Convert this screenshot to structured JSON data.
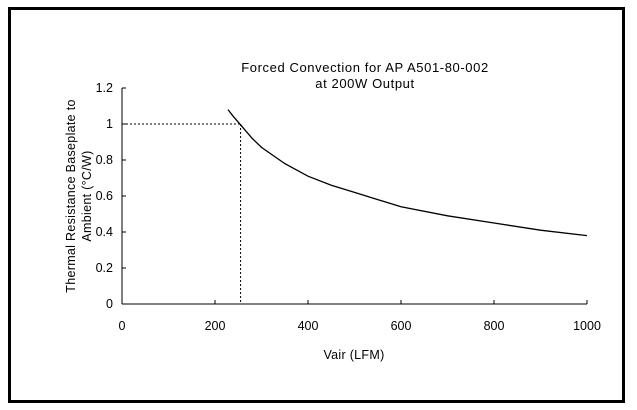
{
  "chart_data": {
    "type": "line",
    "title": "Forced Convection for AP A501-80-002",
    "subtitle": "at 200W Output",
    "xlabel": "Vair (LFM)",
    "ylabel_line1": "Thermal Resistance Baseplate to",
    "ylabel_line2": "Ambient (°C/W)",
    "xlim": [
      0,
      1000
    ],
    "ylim": [
      0,
      1.2
    ],
    "x_ticks": [
      0,
      200,
      400,
      600,
      800,
      1000
    ],
    "x_tick_labels": [
      "0",
      "200",
      "400",
      "600",
      "800",
      "1000"
    ],
    "y_ticks": [
      0,
      0.2,
      0.4,
      0.6,
      0.8,
      1,
      1.2
    ],
    "y_tick_labels": [
      "0",
      "0.2",
      "0.4",
      "0.6",
      "0.8",
      "1",
      "1.2"
    ],
    "grid": false,
    "series": [
      {
        "x": [
          228,
          240,
          250,
          260,
          280,
          300,
          350,
          400,
          450,
          500,
          600,
          700,
          800,
          900,
          1000
        ],
        "y": [
          1.08,
          1.04,
          1.01,
          0.98,
          0.92,
          0.87,
          0.78,
          0.71,
          0.66,
          0.62,
          0.54,
          0.49,
          0.45,
          0.41,
          0.38
        ]
      }
    ],
    "reference_point": {
      "x": 255,
      "y": 1.0
    },
    "colors": {
      "line": "#000000",
      "axes": "#000000",
      "background": "#ffffff"
    }
  }
}
